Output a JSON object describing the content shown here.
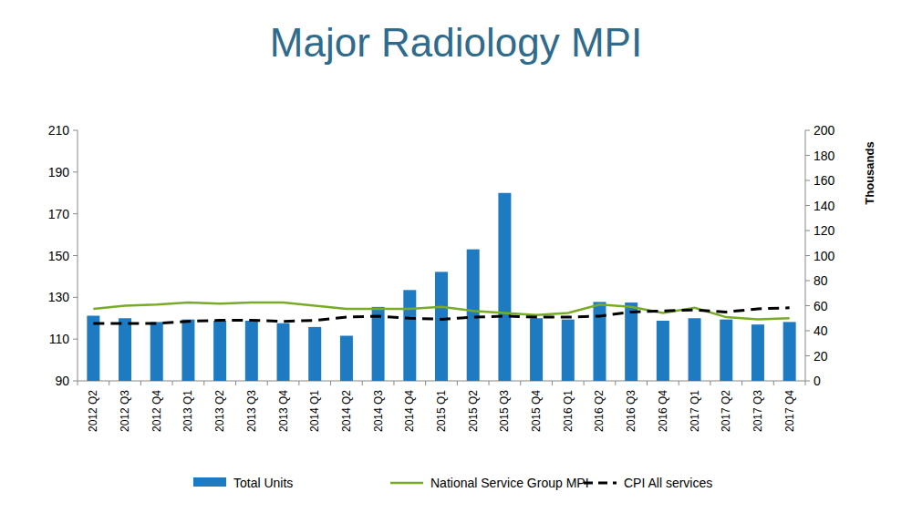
{
  "chart_data": {
    "type": "bar",
    "title": "Major Radiology MPI",
    "categories": [
      "2012 Q2",
      "2012 Q3",
      "2012 Q4",
      "2013 Q1",
      "2013 Q2",
      "2013 Q3",
      "2013 Q4",
      "2014 Q1",
      "2014 Q2",
      "2014 Q3",
      "2014 Q4",
      "2015 Q1",
      "2015 Q2",
      "2015 Q3",
      "2015 Q4",
      "2016 Q1",
      "2016 Q2",
      "2016 Q3",
      "2016 Q4",
      "2017 Q1",
      "2017 Q2",
      "2017 Q3",
      "2017 Q4"
    ],
    "series": [
      {
        "name": "Total Units",
        "type": "bar",
        "axis": "y2",
        "color": "#1f7bc1",
        "values": [
          52,
          50,
          47,
          49,
          48,
          48,
          46,
          43,
          36,
          59,
          72.5,
          87,
          105,
          150,
          50,
          49,
          63,
          62.5,
          48,
          50,
          49,
          45,
          47
        ]
      },
      {
        "name": "National Service Group MPI",
        "type": "line",
        "color": "#78ac26",
        "line_style": "solid",
        "values": [
          124.5,
          126,
          126.5,
          127.5,
          127,
          127.5,
          127.5,
          126,
          124.5,
          124.5,
          124.5,
          125.5,
          123.5,
          122.5,
          121.5,
          122.5,
          126.5,
          125.5,
          122.5,
          125,
          120.5,
          119.5,
          120
        ]
      },
      {
        "name": "CPI All services",
        "type": "line",
        "color": "#000000",
        "line_style": "dashed",
        "values": [
          117.5,
          117.5,
          117.5,
          118.5,
          119,
          119,
          118.5,
          119,
          120.5,
          121,
          120,
          119.5,
          120.5,
          121,
          120.5,
          120.5,
          121,
          123,
          123.5,
          124,
          123,
          124.5,
          125
        ]
      }
    ],
    "ylim": [
      90,
      210
    ],
    "yticks": [
      90,
      110,
      130,
      150,
      170,
      190,
      210
    ],
    "y2lim": [
      0,
      200
    ],
    "y2ticks": [
      0,
      20,
      40,
      60,
      80,
      100,
      120,
      140,
      160,
      180,
      200
    ],
    "y2label": "Thousands",
    "grid": false,
    "legend": "bottom"
  }
}
